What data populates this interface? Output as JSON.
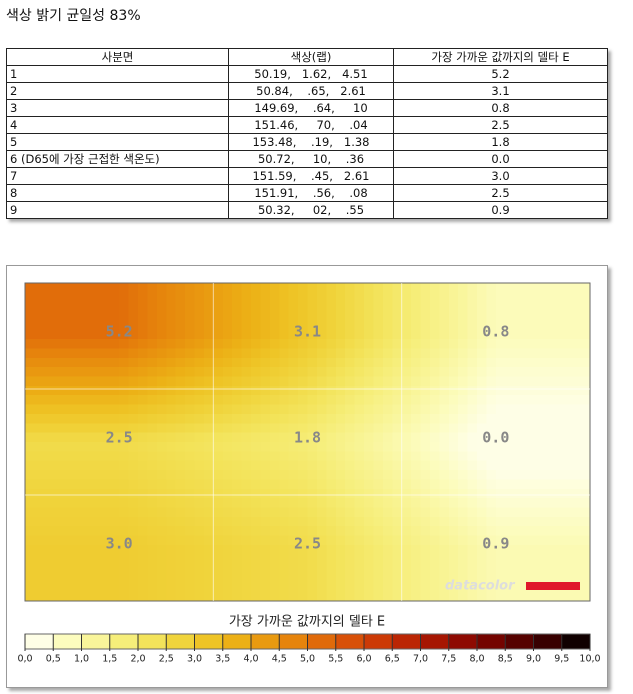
{
  "title": "색상 밝기 균일성 83%",
  "table": {
    "headers": [
      "사분면",
      "색상(랩)",
      "가장 가까운 값까지의 델타 E"
    ],
    "rows": [
      [
        "1",
        "50.19,   1.62,   4.51",
        "5.2"
      ],
      [
        "2",
        "50.84,    .65,   2.61",
        "3.1"
      ],
      [
        "3",
        "149.69,    .64,     10",
        "0.8"
      ],
      [
        "4",
        "151.46,     70,    .04",
        "2.5"
      ],
      [
        "5",
        "153.48,    .19,   1.38",
        "1.8"
      ],
      [
        "6 (D65에 가장 근접한 색온도)",
        "50.72,     10,    .36",
        "0.0"
      ],
      [
        "7",
        "151.59,    .45,   2.61",
        "3.0"
      ],
      [
        "8",
        "151.91,    .56,    .08",
        "2.5"
      ],
      [
        "9",
        "50.32,     02,    .55",
        "0.9"
      ]
    ]
  },
  "heatmap": {
    "zones": [
      "5.2",
      "3.1",
      "0.8",
      "2.5",
      "1.8",
      "0.0",
      "3.0",
      "2.5",
      "0.9"
    ],
    "watermark": "datacolor",
    "legend_title": "가장 가까운 값까지의 델타 E",
    "legend_ticks": [
      "0,0",
      "0,5",
      "1,0",
      "1,5",
      "2,0",
      "2,5",
      "3,0",
      "3,5",
      "4,0",
      "4,5",
      "5,0",
      "5,5",
      "6,0",
      "6,5",
      "7,0",
      "7,5",
      "8,0",
      "8,5",
      "9,0",
      "9,5",
      "10,0"
    ],
    "legend_colors": [
      "#fefee6",
      "#fcfcbe",
      "#f9f59a",
      "#f6ee7a",
      "#f3e35a",
      "#f0d43c",
      "#eec426",
      "#ecb016",
      "#e99a10",
      "#e6840c",
      "#e06a0a",
      "#d85008",
      "#cc3a06",
      "#bb2604",
      "#a61602",
      "#8e0a02",
      "#740400",
      "#560200",
      "#380000",
      "#100000"
    ]
  }
}
